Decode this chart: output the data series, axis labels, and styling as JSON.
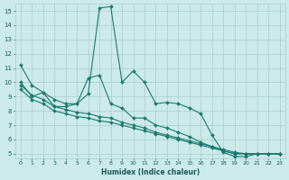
{
  "xlabel": "Humidex (Indice chaleur)",
  "bg_color": "#cceaea",
  "grid_color": "#aacccc",
  "line_color": "#1a7a6e",
  "xlim_min": -0.5,
  "xlim_max": 23.5,
  "ylim_min": 4.7,
  "ylim_max": 15.5,
  "yticks": [
    5,
    6,
    7,
    8,
    9,
    10,
    11,
    12,
    13,
    14,
    15
  ],
  "xticks": [
    0,
    1,
    2,
    3,
    4,
    5,
    6,
    7,
    8,
    9,
    10,
    11,
    12,
    13,
    14,
    15,
    16,
    17,
    18,
    19,
    20,
    21,
    22,
    23
  ],
  "series": [
    {
      "x": [
        0,
        1,
        2,
        3,
        4,
        5,
        6,
        7,
        8,
        9,
        10,
        11,
        12,
        13,
        14,
        15,
        16,
        17,
        18,
        19,
        20,
        21,
        22,
        23
      ],
      "y": [
        11.2,
        9.8,
        9.3,
        8.3,
        8.3,
        8.5,
        9.2,
        15.2,
        15.3,
        10.0,
        10.8,
        10.0,
        8.5,
        8.6,
        8.5,
        8.2,
        7.8,
        6.3,
        5.1,
        4.8,
        4.8,
        5.0,
        5.0,
        5.0
      ]
    },
    {
      "x": [
        0,
        1,
        2,
        3,
        4,
        5,
        6,
        7,
        8,
        9,
        10,
        11,
        12,
        13,
        14,
        15,
        16,
        17,
        18,
        19,
        20,
        21,
        22,
        23
      ],
      "y": [
        10.0,
        9.0,
        9.3,
        8.8,
        8.5,
        8.5,
        10.3,
        10.5,
        8.5,
        8.2,
        7.5,
        7.5,
        7.0,
        6.8,
        6.5,
        6.2,
        5.8,
        5.5,
        5.2,
        5.0,
        5.0,
        5.0,
        5.0,
        5.0
      ]
    },
    {
      "x": [
        0,
        1,
        2,
        3,
        4,
        5,
        6,
        7,
        8,
        9,
        10,
        11,
        12,
        13,
        14,
        15,
        16,
        17,
        18,
        19,
        20,
        21,
        22,
        23
      ],
      "y": [
        9.5,
        8.8,
        8.5,
        8.0,
        7.8,
        7.6,
        7.5,
        7.3,
        7.2,
        7.0,
        6.8,
        6.6,
        6.4,
        6.2,
        6.0,
        5.8,
        5.6,
        5.4,
        5.2,
        5.0,
        5.0,
        5.0,
        5.0,
        5.0
      ]
    },
    {
      "x": [
        0,
        1,
        2,
        3,
        4,
        5,
        6,
        7,
        8,
        9,
        10,
        11,
        12,
        13,
        14,
        15,
        16,
        17,
        18,
        19,
        20,
        21,
        22,
        23
      ],
      "y": [
        9.8,
        9.1,
        8.8,
        8.3,
        8.1,
        7.9,
        7.8,
        7.6,
        7.5,
        7.2,
        7.0,
        6.8,
        6.5,
        6.3,
        6.1,
        5.9,
        5.7,
        5.5,
        5.3,
        5.1,
        5.0,
        5.0,
        5.0,
        5.0
      ]
    }
  ]
}
